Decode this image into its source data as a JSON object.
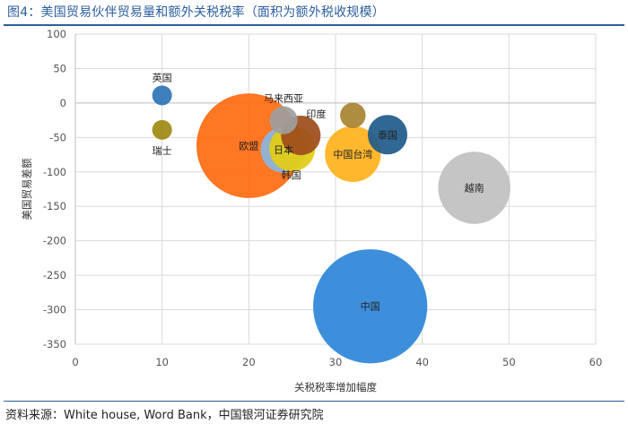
{
  "header": {
    "title": "图4：美国贸易伙伴贸易量和额外关税税率（面积为额外税收规模）"
  },
  "footer": {
    "source": "资料来源：White house, Word Bank，中国银河证券研究院"
  },
  "chart_data": {
    "type": "scatter",
    "subtype": "bubble",
    "xlabel": "关税税率增加幅度",
    "ylabel": "美国贸易差额",
    "xlim": [
      0,
      60
    ],
    "ylim": [
      -350,
      100
    ],
    "xticks": [
      0,
      10,
      20,
      30,
      40,
      50,
      60
    ],
    "yticks": [
      100,
      50,
      0,
      -50,
      -100,
      -150,
      -200,
      -250,
      -300,
      -350
    ],
    "grid": true,
    "points": [
      {
        "label": "英国",
        "x": 10,
        "y": 11,
        "size": 1.5,
        "color": "#2e75b6",
        "label_pos": "top"
      },
      {
        "label": "瑞士",
        "x": 10,
        "y": -39,
        "size": 1.5,
        "color": "#a08a10",
        "label_pos": "bottom"
      },
      {
        "label": "欧盟",
        "x": 20,
        "y": -62,
        "size": 42,
        "color": "#ff6a10",
        "label_pos": "center"
      },
      {
        "label": "日本",
        "x": 24,
        "y": -68,
        "size": 8,
        "color": "#8ab6e0",
        "label_pos": "center"
      },
      {
        "label": "马来西亚",
        "x": 24,
        "y": -25,
        "size": 3,
        "color": "#9e9e9e",
        "label_pos": "top"
      },
      {
        "label": "韩国",
        "x": 25,
        "y": -66,
        "size": 8,
        "color": "#e3cd12",
        "label_pos": "bottom-right"
      },
      {
        "label": "印度",
        "x": 26,
        "y": -47,
        "size": 6,
        "color": "#9c4c1a",
        "label_pos": "top-right"
      },
      {
        "label": "中国台湾",
        "x": 32,
        "y": -74,
        "size": 12,
        "color": "#ffb21c",
        "label_pos": "center"
      },
      {
        "label": "泰国",
        "x": 36,
        "y": -46,
        "size": 6,
        "color": "#1e5a8a",
        "label_pos": "center"
      },
      {
        "label": "越南",
        "x": 46,
        "y": -123,
        "size": 20,
        "color": "#c0c0c0",
        "label_pos": "center"
      },
      {
        "label": "中国",
        "x": 34,
        "y": -295,
        "size": 50,
        "color": "#2e86d8",
        "label_pos": "center"
      },
      {
        "label": "",
        "x": 32,
        "y": -18,
        "size": 2.5,
        "color": "#a88330",
        "label_pos": "none"
      }
    ]
  }
}
